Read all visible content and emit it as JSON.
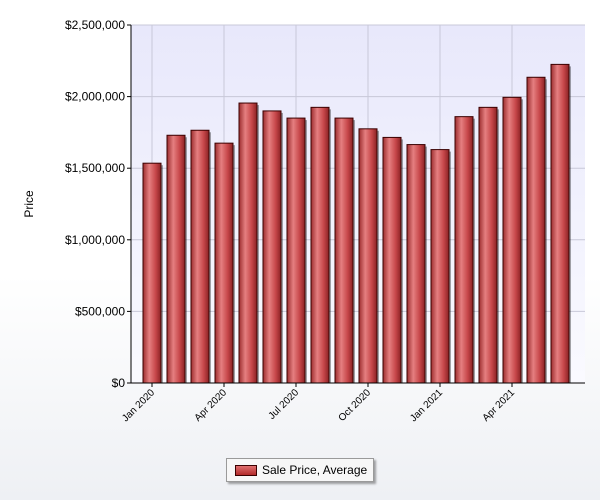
{
  "chart_data": {
    "type": "bar",
    "ylabel": "Price",
    "ylim": [
      0,
      2500000
    ],
    "y_ticks": [
      "$0",
      "$500,000",
      "$1,000,000",
      "$1,500,000",
      "$2,000,000",
      "$2,500,000"
    ],
    "x_tick_labels": [
      "Jan 2020",
      "Apr 2020",
      "Jul 2020",
      "Oct 2020",
      "Jan 2021",
      "Apr 2021"
    ],
    "categories": [
      "Jan 2020",
      "Feb 2020",
      "Mar 2020",
      "Apr 2020",
      "May 2020",
      "Jun 2020",
      "Jul 2020",
      "Aug 2020",
      "Sep 2020",
      "Oct 2020",
      "Nov 2020",
      "Dec 2020",
      "Jan 2021",
      "Feb 2021",
      "Mar 2021",
      "Apr 2021",
      "May 2021",
      "Jun 2021"
    ],
    "series": [
      {
        "name": "Sale Price, Average",
        "values": [
          1535000,
          1730000,
          1765000,
          1675000,
          1955000,
          1900000,
          1850000,
          1925000,
          1850000,
          1775000,
          1715000,
          1665000,
          1630000,
          1860000,
          1925000,
          1995000,
          2135000,
          2225000
        ]
      }
    ],
    "grid": true,
    "legend": "bottom-center",
    "colors": {
      "bar": "#c0393b",
      "bar_border": "#3a0000",
      "plot_bg": "#ececfc",
      "grid": "#c8c8d8"
    }
  }
}
